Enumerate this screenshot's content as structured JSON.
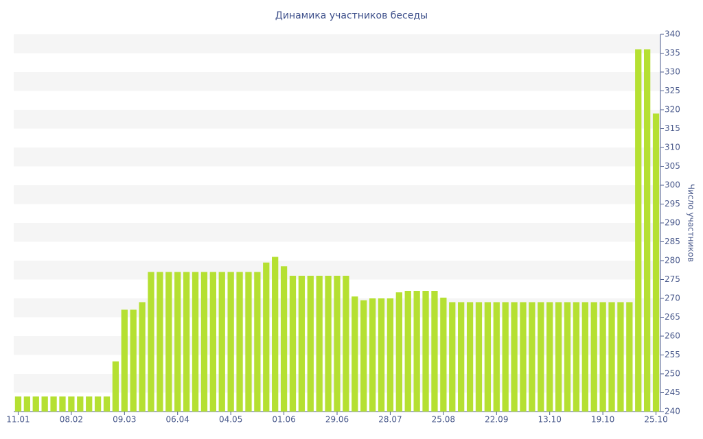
{
  "chart_data": {
    "type": "bar",
    "title": "Динамика участников беседы",
    "y_label": "Число участников",
    "categories": [
      "11.01",
      null,
      null,
      null,
      null,
      null,
      "08.02",
      null,
      null,
      null,
      null,
      null,
      "09.03",
      null,
      null,
      null,
      null,
      null,
      "06.04",
      null,
      null,
      null,
      null,
      null,
      "04.05",
      null,
      null,
      null,
      null,
      null,
      "01.06",
      null,
      null,
      null,
      null,
      null,
      "29.06",
      null,
      null,
      null,
      null,
      null,
      "28.07",
      null,
      null,
      null,
      null,
      null,
      "25.08",
      null,
      null,
      null,
      null,
      null,
      "22.09",
      null,
      null,
      null,
      null,
      null,
      "13.10",
      null,
      null,
      null,
      null,
      null,
      "19.10",
      null,
      null,
      null,
      null,
      null,
      "25.10"
    ],
    "values": [
      244,
      244,
      244,
      244,
      244,
      244,
      244,
      244,
      244,
      244,
      244,
      253.3,
      267,
      267,
      269,
      277,
      277,
      277,
      277,
      277,
      277,
      277,
      277,
      277,
      277,
      277,
      277,
      277,
      279.5,
      281,
      278.5,
      276,
      276,
      276,
      276,
      276,
      276,
      276,
      270.5,
      269.5,
      270,
      270,
      270,
      271.6,
      272,
      272,
      272,
      272,
      270.2,
      269,
      269,
      269,
      269,
      269,
      269,
      269,
      269,
      269,
      269,
      269,
      269,
      269,
      269,
      269,
      269,
      269,
      269,
      269,
      269,
      269,
      336,
      336,
      319
    ],
    "color": "#b5e032",
    "ylim": [
      240,
      340
    ],
    "yticks": [
      240,
      245,
      250,
      255,
      260,
      265,
      270,
      275,
      280,
      285,
      290,
      295,
      300,
      305,
      310,
      315,
      320,
      325,
      330,
      335,
      340
    ],
    "grid": true,
    "y_axis_side": "right"
  }
}
